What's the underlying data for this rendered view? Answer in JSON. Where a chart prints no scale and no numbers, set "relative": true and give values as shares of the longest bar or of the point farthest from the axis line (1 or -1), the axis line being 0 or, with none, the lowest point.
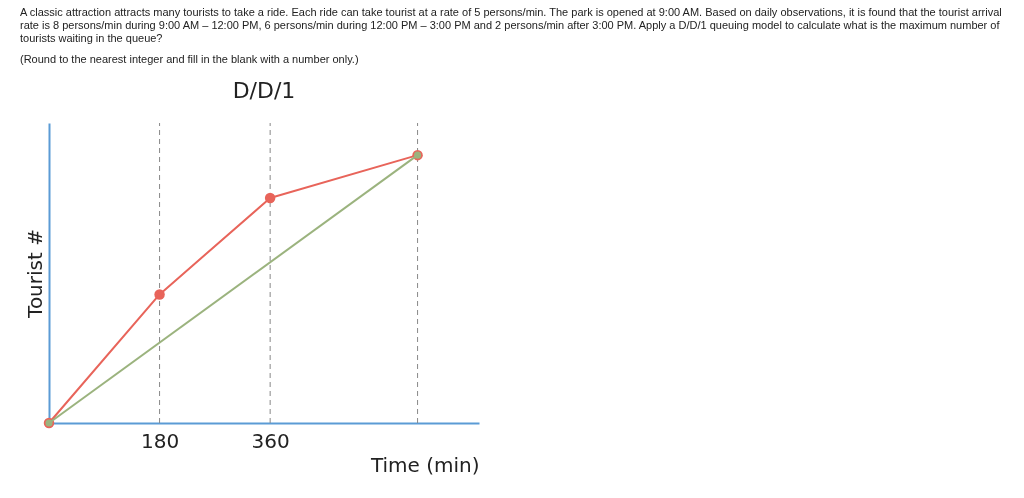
{
  "chart_data": {
    "type": "line",
    "title": "D/D/1",
    "xlabel": "Time (min)",
    "ylabel": "Tourist #",
    "relative": true,
    "x": [
      0,
      180,
      360,
      600
    ],
    "series": [
      {
        "color": "#e8645a",
        "values": [
          0,
          0.48,
          0.84,
          1
        ]
      },
      {
        "color": "#9bb37e",
        "x": [
          0,
          600
        ],
        "values": [
          0,
          1
        ]
      }
    ],
    "xlim": [
      0,
      700
    ],
    "xticks": [
      180,
      360
    ],
    "grid": false,
    "marker": "circle",
    "line_style": "solid",
    "ref_lines": [
      {
        "axis": "x",
        "value": 180,
        "line_style": "dashed",
        "color": "#888888"
      },
      {
        "axis": "x",
        "value": 360,
        "line_style": "dashed",
        "color": "#888888"
      },
      {
        "axis": "x",
        "value": 600,
        "line_style": "dashed",
        "color": "#888888"
      }
    ],
    "annotations": [
      "A classic attraction attracts many tourists to take a ride.  Each ride can take tourist at a rate of 5 persons/min.  The park is opened at 9:00 AM.  Based on daily observations, it is found that the tourist arrival rate is 8 persons/min during 9:00 AM – 12:00 PM, 6 persons/min during 12:00 PM – 3:00 PM and 2 persons/min after 3:00 PM. Apply a D/D/1 queuing model to calculate what is the maximum number of tourists waiting in the queue?",
      "(Round to the nearest integer and fill in the blank with a number only.)"
    ]
  }
}
